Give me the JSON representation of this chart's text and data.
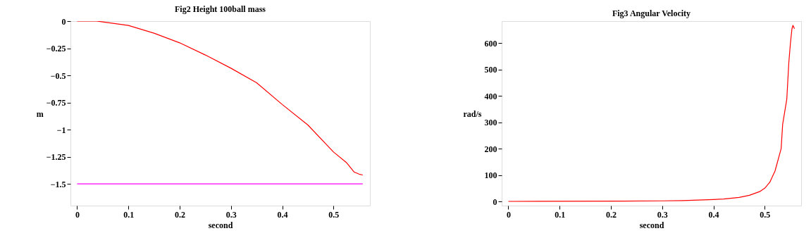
{
  "chart_data": [
    {
      "type": "line",
      "title": "Fig2    Height 100ball  mass",
      "xlabel": "second",
      "ylabel": "m",
      "xlim": [
        -0.013,
        0.571
      ],
      "ylim": [
        -1.7,
        0
      ],
      "xticks": [
        0,
        0.1,
        0.2,
        0.3,
        0.4,
        0.5
      ],
      "yticks": [
        0,
        {
          "value": -0.25,
          "label": "−0.25"
        },
        {
          "value": -0.5,
          "label": "−0.5"
        },
        {
          "value": -0.75,
          "label": "−0.75"
        },
        {
          "value": -1,
          "label": "−1"
        },
        {
          "value": -1.25,
          "label": "−1.25"
        },
        {
          "value": -1.5,
          "label": "−1.5"
        }
      ],
      "grid": false,
      "series": [
        {
          "color": "#ff0000",
          "x": [
            0,
            0.038,
            0.05,
            0.1,
            0.15,
            0.2,
            0.25,
            0.3,
            0.35,
            0.4,
            0.45,
            0.5,
            0.525,
            0.54,
            0.55,
            0.557
          ],
          "values": [
            0,
            0,
            -0.007,
            -0.04,
            -0.111,
            -0.2,
            -0.312,
            -0.434,
            -0.568,
            -0.768,
            -0.957,
            -1.206,
            -1.302,
            -1.39,
            -1.41,
            -1.418
          ]
        },
        {
          "color": "#ff00ff",
          "x": [
            0,
            0.557
          ],
          "values": [
            -1.5,
            -1.5
          ]
        }
      ]
    },
    {
      "type": "line",
      "title": "Fig3        Angular   Velocity",
      "xlabel": "second",
      "ylabel": "rad/s",
      "xlim": [
        -0.013,
        0.571
      ],
      "ylim": [
        -16,
        684
      ],
      "xticks": [
        0,
        0.1,
        0.2,
        0.3,
        0.4,
        0.5
      ],
      "yticks": [
        0,
        100,
        200,
        300,
        400,
        500,
        600
      ],
      "grid": false,
      "series": [
        {
          "color": "#ff0000",
          "x": [
            0,
            0.22,
            0.3,
            0.34,
            0.4,
            0.42,
            0.45,
            0.47,
            0.49,
            0.5,
            0.51,
            0.52,
            0.532,
            0.535,
            0.543,
            0.547,
            0.55,
            0.553,
            0.555,
            0.558
          ],
          "values": [
            0,
            1,
            2,
            3,
            7,
            9,
            15,
            23,
            37,
            50,
            73,
            115,
            200,
            293,
            387,
            527,
            597,
            654,
            668,
            655
          ]
        }
      ]
    }
  ]
}
